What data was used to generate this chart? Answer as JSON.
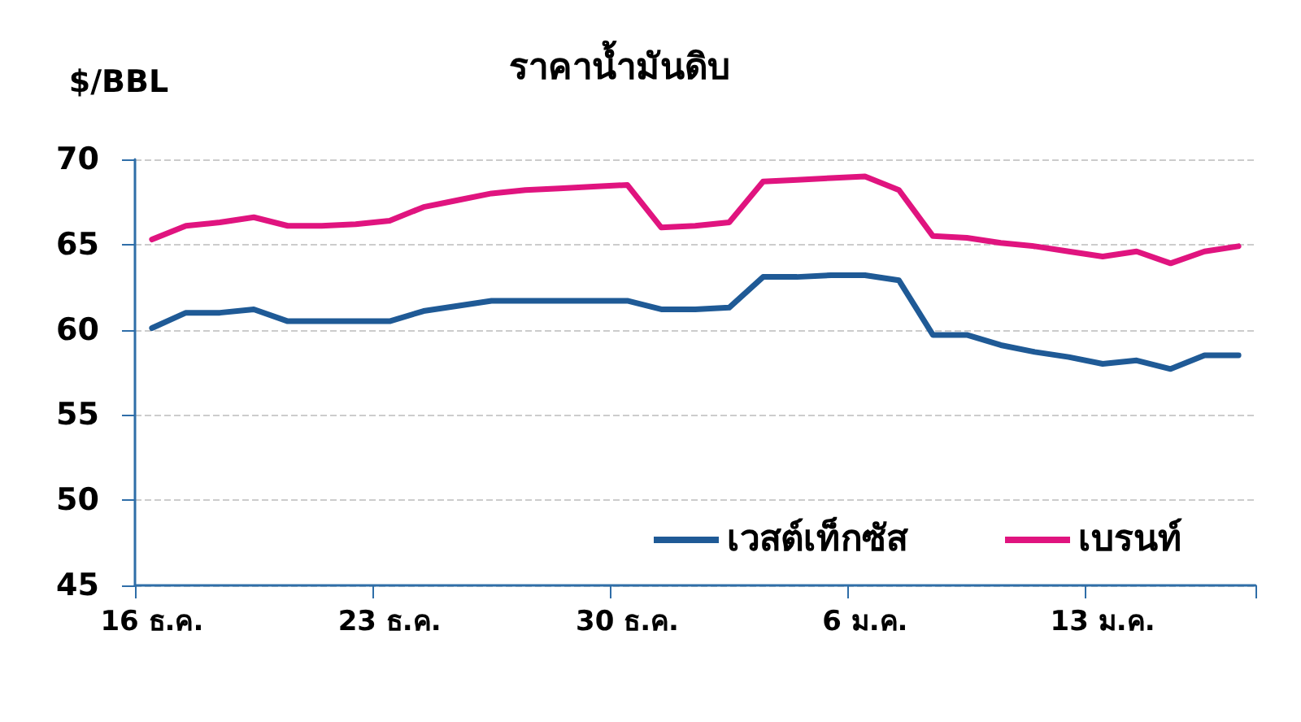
{
  "chart_data": {
    "type": "line",
    "title": "ราคาน้ำมันดิบ",
    "ylabel": "$/BBL",
    "categories": [
      "16 ธ.ค.",
      null,
      null,
      null,
      null,
      null,
      null,
      "23 ธ.ค.",
      null,
      null,
      null,
      null,
      null,
      null,
      "30 ธ.ค.",
      null,
      null,
      null,
      null,
      null,
      null,
      "6 ม.ค.",
      null,
      null,
      null,
      null,
      null,
      null,
      "13 ม.ค.",
      null,
      null,
      null,
      null
    ],
    "series": [
      {
        "name": "เวสต์เท็กซัส",
        "color": "#1f5a96",
        "values": [
          60.1,
          61.0,
          61.0,
          61.2,
          60.5,
          60.5,
          60.5,
          60.5,
          61.1,
          61.4,
          61.7,
          61.7,
          61.7,
          61.7,
          61.7,
          61.2,
          61.2,
          61.3,
          63.1,
          63.1,
          63.2,
          63.2,
          62.9,
          59.7,
          59.7,
          59.1,
          58.7,
          58.4,
          58.0,
          58.2,
          57.7,
          58.5,
          58.5
        ]
      },
      {
        "name": "เบรนท์",
        "color": "#e0147f",
        "values": [
          65.3,
          66.1,
          66.3,
          66.6,
          66.1,
          66.1,
          66.2,
          66.4,
          67.2,
          67.6,
          68.0,
          68.2,
          68.3,
          68.4,
          68.5,
          66.0,
          66.1,
          66.3,
          68.7,
          68.8,
          68.9,
          69.0,
          68.2,
          65.5,
          65.4,
          65.1,
          64.9,
          64.6,
          64.3,
          64.6,
          63.9,
          64.6,
          64.9
        ]
      }
    ],
    "ylim": [
      45,
      70
    ],
    "yticks": [
      45,
      50,
      55,
      60,
      65,
      70
    ],
    "grid": "y",
    "legend": "bottom right",
    "marker": "none",
    "line_style": "solid"
  }
}
